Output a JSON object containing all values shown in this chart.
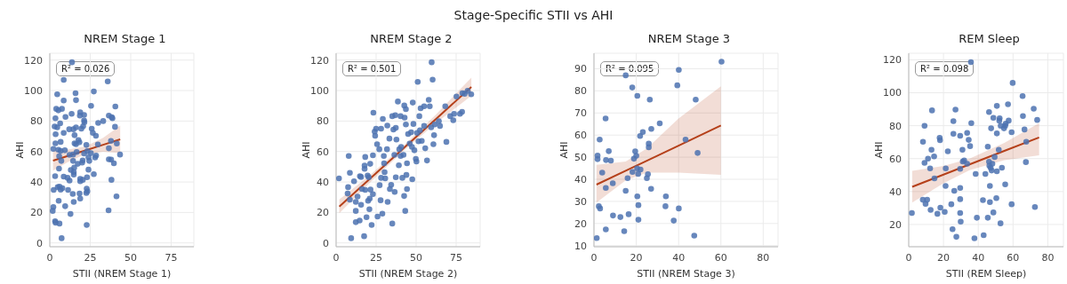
{
  "chart_data": [
    {
      "type": "scatter",
      "title": "NREM Stage 1",
      "xlabel": "STII (NREM Stage 1)",
      "ylabel": "AHI",
      "annotations": [
        "Stage-Specific STII vs AHI",
        "R² = 0.026"
      ],
      "xlim": [
        0,
        89
      ],
      "ylim": [
        -2.5,
        124.5
      ],
      "xticks": [
        0,
        25,
        50,
        75
      ],
      "yticks": [
        0,
        20,
        40,
        60,
        80,
        100,
        120
      ],
      "grid": true,
      "series": [
        {
          "type": "scatter",
          "marker": "circle",
          "color": "#4c72b0",
          "x": [
            4.6,
            8.6,
            8.6,
            13.7,
            15.9,
            16.2,
            27.2,
            35.8,
            4,
            5.3,
            7.5,
            25.5,
            40.5,
            13.5,
            18.8,
            21.2,
            18.6,
            36.5,
            38.3,
            38.7,
            3.5,
            6.4,
            9.7,
            12,
            14.6,
            16.2,
            19.5,
            20.6,
            21.2,
            21.4,
            25.9,
            29.9,
            33,
            40.3,
            3,
            4.6,
            3.6,
            8.6,
            26.6,
            15.3,
            28.5,
            3.5,
            6.7,
            17.7,
            18.3,
            15.3,
            16.2,
            29.7,
            22.6,
            37.8,
            41.4,
            2.2,
            5.3,
            6.7,
            9.3,
            16.6,
            23.2,
            36.5,
            25.4,
            28.6,
            28,
            21.2,
            14.4,
            12.2,
            5.8,
            7.1,
            14.4,
            20.3,
            20,
            23.9,
            24.4,
            36.5,
            37.9,
            39.6,
            43.4,
            5.7,
            13,
            15.1,
            23.9,
            17.3,
            3.3,
            8.6,
            11,
            12.2,
            14.8,
            14.8,
            18.8,
            18.8,
            20.4,
            23,
            27.2,
            38.1,
            2.4,
            4.9,
            6,
            6.7,
            7.8,
            11.3,
            14.2,
            18.4,
            22.8,
            22.6,
            23.2,
            5.5,
            14.8,
            18.8,
            41.2,
            2.2,
            9.5,
            1.8,
            36.3,
            12.8,
            3.3,
            3.6,
            6,
            22.8,
            7.3
          ],
          "values": [
            97.6,
            93.5,
            107,
            118.6,
            98.3,
            93.7,
            99.4,
            106,
            88,
            87,
            88,
            90,
            89.5,
            84.7,
            85.8,
            84,
            83.6,
            83.6,
            82.5,
            81.8,
            81.8,
            78.5,
            82.7,
            74.6,
            74.6,
            75.9,
            75,
            76.6,
            80.3,
            79.2,
            75,
            78.8,
            80,
            76.2,
            76.4,
            75.9,
            71.3,
            72.2,
            72.2,
            70.7,
            70.3,
            65.4,
            66.3,
            67.6,
            66.1,
            65.4,
            64.8,
            64.6,
            64.3,
            67,
            65.2,
            61.7,
            61.1,
            60.4,
            60.8,
            59.7,
            60.2,
            62.1,
            58.9,
            57.3,
            56,
            58.7,
            58,
            57.8,
            56.9,
            53.8,
            53.8,
            54.1,
            52.7,
            56.2,
            53.8,
            54.9,
            54.7,
            52.3,
            58,
            48.8,
            47.9,
            49.4,
            48.1,
            51.9,
            43.8,
            43.5,
            42.7,
            40.9,
            46.4,
            44.9,
            42,
            40.5,
            41.4,
            43.1,
            45.1,
            41.4,
            34.8,
            36.6,
            37,
            35,
            35.9,
            34.8,
            32.2,
            32.4,
            35.7,
            32.8,
            33.9,
            27.6,
            26.9,
            29.1,
            30.6,
            23.6,
            24.1,
            21,
            21.4,
            19,
            14.2,
            13.3,
            12.7,
            11.8,
            3.1
          ]
        },
        {
          "type": "line",
          "color": "#b5401a",
          "x": [
            2,
            12,
            22,
            33,
            43.5
          ],
          "values": [
            54,
            57.4,
            60.7,
            64.4,
            68
          ],
          "lower": [
            47.5,
            53.5,
            58.3,
            59.8,
            59
          ],
          "upper": [
            60.5,
            61.5,
            63.3,
            69,
            77
          ]
        }
      ]
    },
    {
      "type": "scatter",
      "title": "NREM Stage 2",
      "xlabel": "STII (NREM Stage 2)",
      "ylabel": "AHI",
      "annotations": [
        "R² = 0.501"
      ],
      "xlim": [
        0,
        90
      ],
      "ylim": [
        -2.5,
        124.5
      ],
      "xticks": [
        0,
        25,
        50,
        75
      ],
      "yticks": [
        0,
        20,
        40,
        60,
        80,
        100,
        120
      ],
      "grid": true,
      "series": [
        {
          "type": "scatter",
          "marker": "circle",
          "color": "#4c72b0",
          "x": [
            1.8,
            7.5,
            7.9,
            8.6,
            7.2,
            8.6,
            9.4,
            11.2,
            12.3,
            12.3,
            12.3,
            13.4,
            14.9,
            14.7,
            15.6,
            16.2,
            15.6,
            17.5,
            18.2,
            17.8,
            17.8,
            18.2,
            20,
            19,
            19.7,
            20.4,
            21.3,
            21.5,
            21,
            20.8,
            22.2,
            23,
            23,
            23.3,
            24.1,
            24.4,
            25,
            25.6,
            25.9,
            27,
            27.2,
            28.1,
            27.8,
            28.1,
            28.9,
            29.2,
            29.8,
            30,
            30.3,
            30.7,
            31.8,
            32,
            32.2,
            33.3,
            33.6,
            34.4,
            35.1,
            35.1,
            35.8,
            36.4,
            37,
            37.3,
            37.7,
            37.3,
            36.6,
            38.6,
            39.2,
            39.5,
            40.3,
            40.3,
            40.6,
            41.4,
            42.1,
            42.5,
            42.6,
            42.8,
            43.2,
            43.6,
            43.6,
            44.3,
            43.9,
            44.3,
            45,
            46,
            46.9,
            47.4,
            47.9,
            47.6,
            48.3,
            48.9,
            49.8,
            50.2,
            50.6,
            51,
            51.5,
            52,
            52.4,
            52.8,
            53.5,
            55,
            55,
            55.7,
            56.8,
            57.9,
            58.5,
            59.4,
            59.7,
            60.3,
            60.8,
            61.2,
            61.6,
            64.2,
            64.9,
            68.2,
            68.9,
            71.3,
            73.2,
            73.7,
            75.2,
            77.4,
            78.7,
            78.9,
            80.3,
            82.2,
            84.4
          ],
          "values": [
            42.4,
            36.6,
            57.1,
            46,
            32.4,
            28.4,
            3.1,
            40.5,
            26.9,
            21,
            13.6,
            30.4,
            43.8,
            14.7,
            43.3,
            35.4,
            25,
            4.4,
            56.4,
            50.8,
            48.6,
            34.8,
            27.6,
            16.9,
            44.2,
            43.1,
            51.9,
            35,
            29.1,
            22.1,
            11.8,
            57.5,
            32,
            85.5,
            73.1,
            70.3,
            75,
            64.8,
            17.3,
            61.5,
            37.9,
            75,
            28,
            42.7,
            19.2,
            81.4,
            57.1,
            52.3,
            46.4,
            42.4,
            61.5,
            77,
            26.9,
            68.5,
            35.4,
            38.1,
            83.2,
            12.7,
            74.4,
            57.8,
            83.8,
            75.5,
            67.8,
            43.1,
            33.5,
            92.8,
            51,
            61.5,
            83.2,
            57.1,
            63,
            42.7,
            57.8,
            30.8,
            90.2,
            82.3,
            21,
            87.8,
            77.7,
            52.3,
            44.6,
            35.4,
            71.5,
            65.2,
            72.6,
            63,
            92.1,
            41.8,
            78.1,
            60.8,
            55.2,
            53.4,
            72.2,
            105.7,
            66.7,
            83.2,
            74,
            88.4,
            67,
            89.7,
            76.8,
            62.1,
            54.1,
            93.9,
            89.7,
            75.9,
            118.6,
            107.2,
            64.8,
            70.7,
            77.7,
            79.9,
            76.8,
            89.7,
            66.3,
            83.2,
            80.5,
            84.7,
            96.1,
            84.7,
            86,
            98.3,
            97.9,
            99.8,
            97.6
          ]
        },
        {
          "type": "line",
          "color": "#b5401a",
          "x": [
            2,
            22,
            42,
            62,
            84.5
          ],
          "values": [
            23.9,
            42.9,
            62,
            81,
            102.4
          ],
          "lower": [
            19.5,
            40.5,
            60.3,
            78.3,
            96.5
          ],
          "upper": [
            28.5,
            45.3,
            63.7,
            83.8,
            108.5
          ]
        }
      ]
    },
    {
      "type": "scatter",
      "title": "NREM Stage 3",
      "xlabel": "STII (NREM Stage 3)",
      "ylabel": "AHI",
      "annotations": [
        "R² = 0.095"
      ],
      "xlim": [
        0,
        87
      ],
      "ylim": [
        9.5,
        97
      ],
      "xticks": [
        0,
        20,
        40,
        60,
        80
      ],
      "yticks": [
        10,
        20,
        30,
        40,
        50,
        60,
        70,
        80,
        90
      ],
      "grid": true,
      "series": [
        {
          "type": "scatter",
          "marker": "circle",
          "color": "#4c72b0",
          "x": [
            1.3,
            1.7,
            1.7,
            2.3,
            2.9,
            2.7,
            3.9,
            5.5,
            5.6,
            5.7,
            5.6,
            7,
            8,
            8.9,
            9,
            12.5,
            14.3,
            15,
            15,
            15.9,
            16.4,
            18.2,
            18.1,
            18.9,
            19.5,
            20,
            20.4,
            20.5,
            20.5,
            20.9,
            21,
            21,
            21.8,
            22,
            23.1,
            25,
            25.5,
            25.9,
            25.9,
            26.4,
            27,
            27.1,
            31.1,
            34,
            33.8,
            37.7,
            39.4,
            40.1,
            40.1,
            43.3,
            47.4,
            48.1,
            49,
            60.3
          ],
          "values": [
            13.4,
            50.7,
            49.1,
            27.8,
            26.8,
            58,
            43,
            67.5,
            36.1,
            48.7,
            17.3,
            52.7,
            48.4,
            38.2,
            23.6,
            22.9,
            16.5,
            34.8,
            87,
            40.5,
            24.2,
            43.3,
            81.5,
            49.3,
            52.6,
            50.6,
            44.9,
            32.3,
            77.7,
            42.4,
            28.3,
            21.7,
            59.6,
            44.4,
            61.4,
            40.5,
            42.3,
            56.1,
            54.5,
            76,
            35.7,
            62.8,
            65.3,
            32.3,
            27.8,
            21.3,
            82.5,
            89.5,
            26.8,
            58,
            14.5,
            76,
            51.9,
            93.2
          ]
        },
        {
          "type": "line",
          "color": "#b5401a",
          "x": [
            1.2,
            15,
            25,
            40,
            60
          ],
          "values": [
            37.6,
            43.9,
            48.4,
            55.2,
            64.3
          ],
          "lower": [
            29.5,
            39.5,
            43,
            43,
            42
          ],
          "upper": [
            46.5,
            48,
            54,
            67.5,
            82
          ]
        }
      ]
    },
    {
      "type": "scatter",
      "title": "REM Sleep",
      "xlabel": "STII (REM Sleep)",
      "ylabel": "AHI",
      "annotations": [
        "R² = 0.098"
      ],
      "xlim": [
        0,
        89
      ],
      "ylim": [
        6.5,
        124
      ],
      "xticks": [
        0,
        20,
        40,
        60,
        80
      ],
      "yticks": [
        20,
        40,
        60,
        80,
        100,
        120
      ],
      "grid": true,
      "series": [
        {
          "type": "scatter",
          "marker": "circle",
          "color": "#4c72b0",
          "x": [
            1.8,
            8.2,
            8.1,
            9.1,
            9.1,
            9.7,
            10.6,
            11.1,
            12.3,
            12.6,
            13.1,
            13.4,
            14.6,
            14.8,
            16.5,
            17.8,
            18,
            18.2,
            20.7,
            21.2,
            21.3,
            22.5,
            24.5,
            25.2,
            25.7,
            25.7,
            26.2,
            26.9,
            27.4,
            29.6,
            29.6,
            29.6,
            29.6,
            29.6,
            29.9,
            30.9,
            31.1,
            31.9,
            33.6,
            33.6,
            34.5,
            35.3,
            36,
            35.8,
            37.8,
            38.5,
            39.2,
            42.7,
            43.1,
            44.1,
            45.5,
            45.5,
            46.2,
            46.2,
            46.4,
            46.7,
            46.7,
            47.1,
            47.4,
            47.7,
            48.1,
            48.7,
            48.7,
            49.4,
            50.4,
            50.7,
            50.7,
            50.7,
            51.8,
            52.1,
            52.3,
            52.8,
            52.9,
            53.6,
            54.8,
            55.5,
            55.5,
            55.8,
            57.5,
            57.1,
            59.2,
            59.2,
            59.8,
            65.5,
            65.7,
            66.6,
            67.4,
            67.6,
            71.9,
            72.6,
            73.9
          ],
          "values": [
            27,
            70.2,
            35,
            79.9,
            57.4,
            32.5,
            35,
            60,
            54.1,
            28.9,
            65.4,
            89.3,
            61.3,
            48,
            26.5,
            72.6,
            71.2,
            30.2,
            27.7,
            43.4,
            54.1,
            64.4,
            32.3,
            17.1,
            82.8,
            75.1,
            40.5,
            89.8,
            12.5,
            73.9,
            53.8,
            42.2,
            35.4,
            27,
            21.7,
            65.4,
            58.2,
            58.9,
            56.9,
            75.6,
            71.4,
            67.6,
            81.6,
            118.6,
            11.6,
            50.7,
            24.1,
            34.8,
            13.5,
            50.7,
            67.3,
            24.1,
            88.3,
            58.1,
            55.7,
            43.4,
            33.6,
            54.5,
            78.4,
            52.8,
            56.9,
            84.8,
            27.3,
            61,
            36,
            92,
            75.3,
            52.3,
            65.4,
            83.1,
            84.5,
            20.7,
            79.9,
            54.5,
            78.4,
            79.9,
            44.4,
            81.3,
            83.1,
            93,
            76,
            32.3,
            106,
            98,
            85.9,
            77.7,
            57.9,
            70.2,
            90.3,
            30.6,
            83.5
          ]
        },
        {
          "type": "line",
          "color": "#b5401a",
          "x": [
            2,
            20,
            35,
            55,
            75
          ],
          "values": [
            42.9,
            50.3,
            56.5,
            64.7,
            72.9
          ],
          "lower": [
            33.3,
            45,
            53,
            59,
            62
          ],
          "upper": [
            52.6,
            55.5,
            60,
            69.5,
            81.6
          ]
        }
      ]
    }
  ]
}
